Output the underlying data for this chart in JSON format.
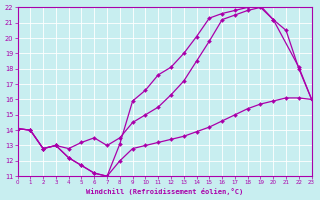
{
  "xlabel": "Windchill (Refroidissement éolien,°C)",
  "xlim": [
    0,
    23
  ],
  "ylim": [
    11,
    22
  ],
  "xticks": [
    0,
    1,
    2,
    3,
    4,
    5,
    6,
    7,
    8,
    9,
    10,
    11,
    12,
    13,
    14,
    15,
    16,
    17,
    18,
    19,
    20,
    21,
    22,
    23
  ],
  "yticks": [
    11,
    12,
    13,
    14,
    15,
    16,
    17,
    18,
    19,
    20,
    21,
    22
  ],
  "color": "#aa00aa",
  "bg_color": "#c8eef0",
  "grid_color": "#b0dde0",
  "line_upper": {
    "x": [
      0,
      1,
      2,
      3,
      4,
      5,
      6,
      7,
      8,
      9,
      10,
      11,
      12,
      13,
      14,
      15,
      16,
      17,
      18,
      19,
      20,
      22,
      23
    ],
    "y": [
      14.1,
      14.0,
      12.8,
      13.0,
      12.2,
      11.7,
      11.2,
      11.0,
      13.1,
      15.9,
      16.6,
      17.6,
      18.1,
      19.0,
      20.1,
      21.3,
      21.6,
      21.8,
      22.0,
      22.1,
      21.2,
      18.1,
      16.0
    ]
  },
  "line_mid": {
    "x": [
      0,
      1,
      2,
      3,
      4,
      5,
      6,
      7,
      8,
      9,
      10,
      11,
      12,
      13,
      14,
      15,
      16,
      17,
      18,
      19,
      20,
      21,
      22,
      23
    ],
    "y": [
      14.1,
      14.0,
      12.8,
      13.0,
      12.8,
      13.2,
      13.5,
      13.0,
      13.5,
      14.5,
      15.0,
      15.5,
      16.3,
      17.2,
      18.5,
      19.8,
      21.2,
      21.5,
      21.8,
      22.0,
      21.2,
      20.5,
      18.0,
      16.0
    ]
  },
  "line_lower": {
    "x": [
      0,
      1,
      2,
      3,
      4,
      5,
      6,
      7,
      8,
      9,
      10,
      11,
      12,
      13,
      14,
      15,
      16,
      17,
      18,
      19,
      20,
      21,
      22,
      23
    ],
    "y": [
      14.1,
      14.0,
      12.8,
      13.0,
      12.2,
      11.7,
      11.2,
      11.0,
      12.0,
      12.8,
      13.0,
      13.2,
      13.4,
      13.6,
      13.9,
      14.2,
      14.6,
      15.0,
      15.4,
      15.7,
      15.9,
      16.1,
      16.1,
      16.0
    ]
  }
}
